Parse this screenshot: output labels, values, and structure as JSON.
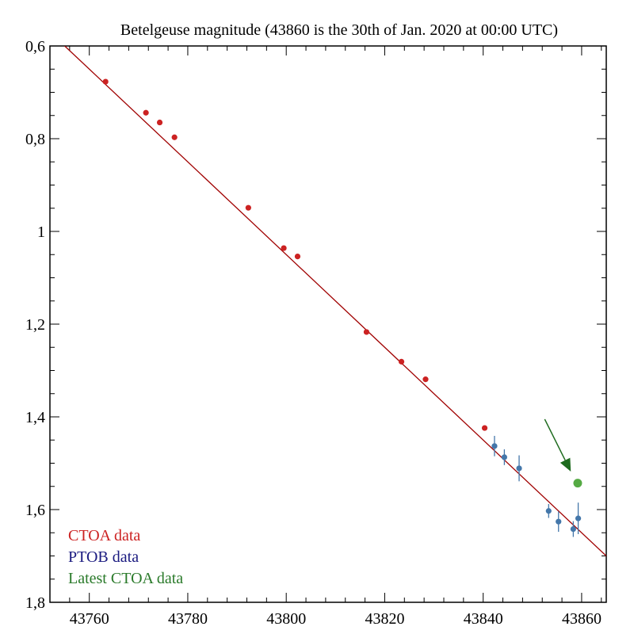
{
  "chart_data": {
    "type": "scatter",
    "title": "Betelgeuse magnitude (43860 is the 30th of Jan. 2020 at 00:00 UTC)",
    "xlabel": "",
    "ylabel": "",
    "xlim": [
      43752,
      43865
    ],
    "ylim": [
      0.6,
      1.8
    ],
    "y_inverted": true,
    "grid": false,
    "x_ticks": [
      43760,
      43780,
      43800,
      43820,
      43840,
      43860
    ],
    "x_tick_labels": [
      "43760",
      "43780",
      "43800",
      "43820",
      "43840",
      "43860"
    ],
    "y_ticks": [
      0.6,
      0.8,
      1.0,
      1.2,
      1.4,
      1.6,
      1.8
    ],
    "y_tick_labels": [
      "0,6",
      "0,8",
      "1",
      "1,2",
      "1,4",
      "1,6",
      "1,8"
    ],
    "fit_line": {
      "name": "",
      "color": "#a00000",
      "x": [
        43755,
        43865
      ],
      "y": [
        0.6,
        1.7
      ]
    },
    "series": [
      {
        "name": "CTOA data",
        "color": "#cc2222",
        "x": [
          43763.3,
          43771.5,
          43774.3,
          43777.3,
          43792.3,
          43799.5,
          43802.3,
          43816.3,
          43823.4,
          43828.3,
          43840.3
        ],
        "y": [
          0.677,
          0.744,
          0.765,
          0.797,
          0.949,
          1.036,
          1.054,
          1.217,
          1.281,
          1.319,
          1.424
        ],
        "err": null
      },
      {
        "name": "PTOB data",
        "color": "#4477aa",
        "x": [
          43842.3,
          43844.3,
          43847.3,
          43853.3,
          43855.3,
          43858.3,
          43859.3
        ],
        "y": [
          1.463,
          1.487,
          1.511,
          1.603,
          1.626,
          1.642,
          1.619
        ],
        "err": [
          0.022,
          0.017,
          0.028,
          0.015,
          0.022,
          0.017,
          0.034
        ]
      },
      {
        "name": "Latest CTOA data",
        "color": "#55aa44",
        "x": [
          43859.2
        ],
        "y": [
          1.543
        ],
        "err": null
      }
    ],
    "annotations": [
      {
        "type": "arrow",
        "color": "#1e6b1e",
        "from": [
          43852.5,
          1.405
        ],
        "to": [
          43857.8,
          1.518
        ]
      }
    ],
    "legend": {
      "placement": "bottom-left",
      "entries": [
        {
          "label": "CTOA data",
          "color": "#cc2222"
        },
        {
          "label": "PTOB data",
          "color": "#1a1a80"
        },
        {
          "label": "Latest CTOA data",
          "color": "#2a7a2a"
        }
      ]
    }
  }
}
